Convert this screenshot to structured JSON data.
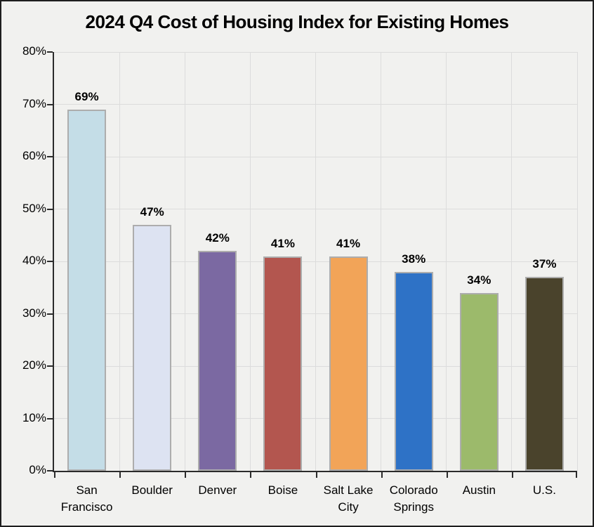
{
  "title": "2024 Q4 Cost of Housing Index for Existing Homes",
  "chart_data": {
    "type": "bar",
    "title": "2024 Q4 Cost of Housing Index for Existing Homes",
    "categories": [
      "San Francisco",
      "Boulder",
      "Denver",
      "Boise",
      "Salt Lake City",
      "Colorado Springs",
      "Austin",
      "U.S."
    ],
    "values": [
      69,
      47,
      42,
      41,
      41,
      38,
      34,
      37
    ],
    "value_labels": [
      "69%",
      "47%",
      "42%",
      "41%",
      "41%",
      "38%",
      "34%",
      "37%"
    ],
    "bar_colors": [
      "#c4dde7",
      "#dde3f2",
      "#7b69a2",
      "#b3564f",
      "#f2a458",
      "#2e72c6",
      "#9cba6b",
      "#4a432c"
    ],
    "y_tick_labels": [
      "0%",
      "10%",
      "20%",
      "30%",
      "40%",
      "50%",
      "60%",
      "70%",
      "80%"
    ],
    "y_tick_values": [
      0,
      10,
      20,
      30,
      40,
      50,
      60,
      70,
      80
    ],
    "ylim": [
      0,
      80
    ],
    "grid": true,
    "legend": "none",
    "xlabel": "",
    "ylabel": ""
  },
  "colors": {
    "background": "#f1f1ef",
    "axis": "#2b2b2b",
    "gridline": "#dcdcdc",
    "bar_border": "#adadad",
    "text": "#000000"
  }
}
